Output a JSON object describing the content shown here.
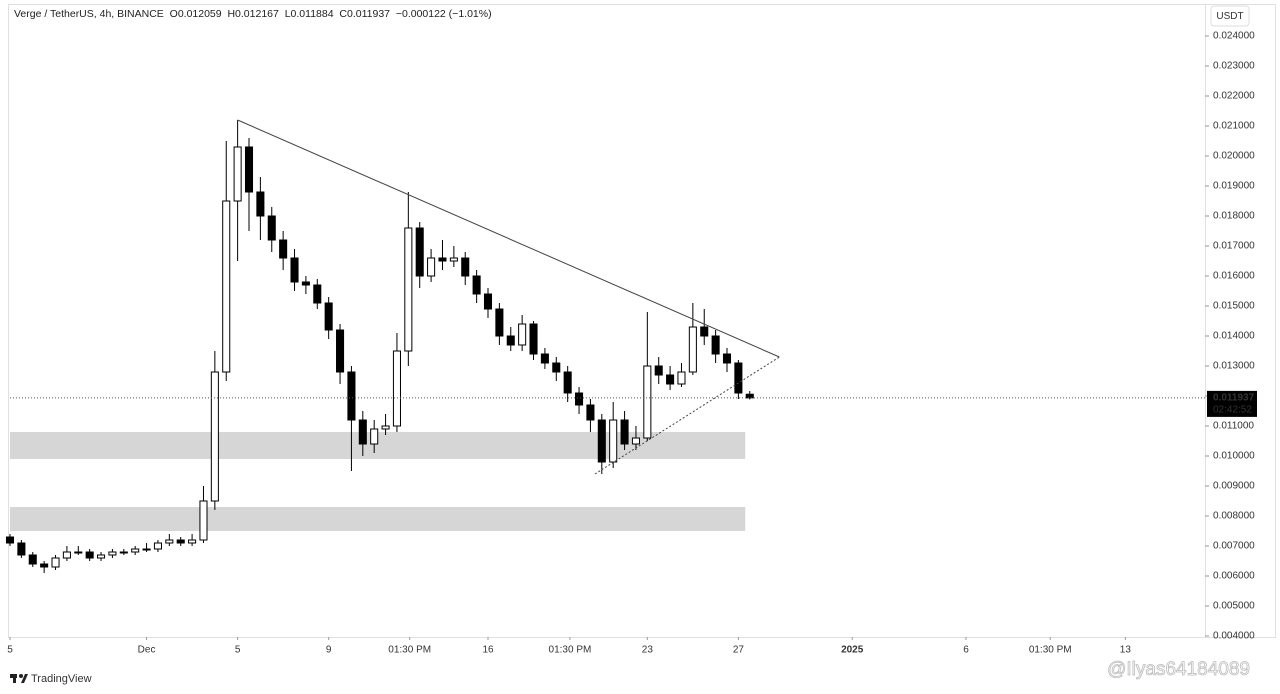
{
  "chart_data": {
    "type": "candlestick",
    "title": "Verge / TetherUS, 4h, BINANCE",
    "ohlc_labels": [
      "O",
      "H",
      "L",
      "C"
    ],
    "change_label": "−0.000122 (−1.01%)",
    "currency": "USDT",
    "countdown": "02:42:52",
    "up_color": "#ffffff",
    "down_color": "#000000",
    "x": [
      -5,
      -4.5,
      -4,
      -3.5,
      -3,
      -2.5,
      -2,
      -1.5,
      -1,
      -0.5,
      0,
      0.5,
      1,
      1.5,
      2,
      2.5,
      3,
      3.5,
      4,
      4.5,
      5,
      5.5,
      6,
      6.5,
      7,
      7.5,
      8,
      8.5,
      9,
      9.5,
      10,
      10.5,
      11,
      11.5,
      12,
      12.5,
      13,
      13.5,
      14,
      14.5,
      15,
      15.5,
      16,
      16.5,
      17,
      17.5,
      18,
      18.5,
      19,
      19.5,
      20,
      20.5,
      21,
      21.5,
      22,
      22.5,
      23,
      23.5,
      24,
      24.5,
      25,
      25.5,
      26,
      26.5,
      27,
      27.5
    ],
    "open": [
      0.0073,
      0.0071,
      0.0067,
      0.0064,
      0.0063,
      0.0066,
      0.0068,
      0.0068,
      0.0066,
      0.0067,
      0.0068,
      0.0068,
      0.0069,
      0.0069,
      0.0071,
      0.0072,
      0.0071,
      0.0072,
      0.0085,
      0.0128,
      0.0185,
      0.0203,
      0.0188,
      0.018,
      0.0172,
      0.0166,
      0.0158,
      0.0157,
      0.0151,
      0.0142,
      0.0128,
      0.0112,
      0.0104,
      0.0109,
      0.011,
      0.0135,
      0.0176,
      0.016,
      0.0166,
      0.0165,
      0.0166,
      0.016,
      0.0154,
      0.0149,
      0.014,
      0.0137,
      0.0144,
      0.0134,
      0.0131,
      0.0128,
      0.0121,
      0.0117,
      0.0112,
      0.0098,
      0.0112,
      0.0104,
      0.0106,
      0.013,
      0.0127,
      0.0124,
      0.0128,
      0.0143,
      0.014,
      0.0134,
      0.0131,
      0.012059
    ],
    "high": [
      0.0074,
      0.0072,
      0.0068,
      0.0065,
      0.0067,
      0.007,
      0.007,
      0.0069,
      0.0068,
      0.0069,
      0.0069,
      0.007,
      0.0071,
      0.0072,
      0.0074,
      0.0073,
      0.0074,
      0.009,
      0.0135,
      0.0205,
      0.0212,
      0.0206,
      0.0193,
      0.0183,
      0.0175,
      0.0169,
      0.016,
      0.0159,
      0.0153,
      0.0144,
      0.013,
      0.0115,
      0.0112,
      0.0114,
      0.0141,
      0.0188,
      0.0178,
      0.0169,
      0.0172,
      0.017,
      0.0168,
      0.0162,
      0.0156,
      0.0151,
      0.0143,
      0.0147,
      0.0145,
      0.0136,
      0.0133,
      0.013,
      0.0123,
      0.0119,
      0.0114,
      0.0118,
      0.0115,
      0.011,
      0.0148,
      0.0133,
      0.013,
      0.0131,
      0.0151,
      0.0149,
      0.0142,
      0.0136,
      0.0132,
      0.012167
    ],
    "low": [
      0.007,
      0.0066,
      0.0063,
      0.0061,
      0.0062,
      0.0065,
      0.0067,
      0.0065,
      0.0065,
      0.0066,
      0.0067,
      0.0067,
      0.0068,
      0.0068,
      0.007,
      0.007,
      0.007,
      0.0071,
      0.0082,
      0.0125,
      0.0165,
      0.0175,
      0.0172,
      0.0168,
      0.0162,
      0.0155,
      0.0154,
      0.0149,
      0.0139,
      0.0124,
      0.0095,
      0.01,
      0.0101,
      0.0107,
      0.0108,
      0.013,
      0.0156,
      0.0158,
      0.0162,
      0.0163,
      0.0157,
      0.0151,
      0.0146,
      0.0137,
      0.0135,
      0.0135,
      0.0132,
      0.0129,
      0.0125,
      0.0118,
      0.0114,
      0.0108,
      0.0094,
      0.0096,
      0.0102,
      0.0102,
      0.0105,
      0.0124,
      0.0122,
      0.0123,
      0.0127,
      0.0137,
      0.0131,
      0.0128,
      0.0119,
      0.011884
    ],
    "close": [
      0.0071,
      0.0067,
      0.0064,
      0.0063,
      0.0066,
      0.0068,
      0.0068,
      0.0066,
      0.0067,
      0.0068,
      0.0068,
      0.0069,
      0.0069,
      0.0071,
      0.0072,
      0.0071,
      0.0072,
      0.0085,
      0.0128,
      0.0185,
      0.0203,
      0.0188,
      0.018,
      0.0172,
      0.0166,
      0.0158,
      0.0157,
      0.0151,
      0.0142,
      0.0128,
      0.0112,
      0.0104,
      0.0109,
      0.011,
      0.0135,
      0.0176,
      0.016,
      0.0166,
      0.0165,
      0.0166,
      0.016,
      0.0154,
      0.0149,
      0.014,
      0.0137,
      0.0144,
      0.0134,
      0.0131,
      0.0128,
      0.0121,
      0.0117,
      0.0112,
      0.0098,
      0.0112,
      0.0104,
      0.0106,
      0.013,
      0.0127,
      0.0124,
      0.0128,
      0.0143,
      0.014,
      0.0134,
      0.0131,
      0.0121,
      0.011937
    ],
    "trendlines": [
      {
        "style": "solid",
        "x": [
          5,
          28.8
        ],
        "y": [
          0.0212,
          0.0133
        ]
      },
      {
        "style": "dotted",
        "x": [
          20.7,
          28.8
        ],
        "y": [
          0.0094,
          0.0133
        ]
      }
    ],
    "zones": [
      {
        "x": [
          -5,
          27.3
        ],
        "y": [
          0.0099,
          0.0108
        ],
        "color": "#d6d6d6"
      },
      {
        "x": [
          -5,
          27.3
        ],
        "y": [
          0.0075,
          0.0083
        ],
        "color": "#d6d6d6"
      }
    ],
    "xlim": [
      -5,
      47.5
    ],
    "ylim": [
      0.004,
      0.025
    ],
    "xticks": [
      {
        "value": -5,
        "label": "5"
      },
      {
        "value": 1,
        "label": "Dec"
      },
      5,
      9,
      {
        "value": 12.56,
        "label": "01:30 PM"
      },
      16,
      {
        "value": 19.6,
        "label": "01:30 PM"
      },
      23,
      27,
      {
        "value": 32,
        "label": "2025"
      },
      {
        "value": 37,
        "label": "6"
      },
      {
        "value": 40.7,
        "label": "01:30 PM"
      },
      {
        "value": 44,
        "label": "13"
      }
    ],
    "yticks": [
      {
        "value": 0.004,
        "label": "0.004000"
      },
      {
        "value": 0.005,
        "label": "0.005000"
      },
      {
        "value": 0.006,
        "label": "0.006000"
      },
      {
        "value": 0.007,
        "label": "0.007000"
      },
      {
        "value": 0.008,
        "label": "0.008000"
      },
      {
        "value": 0.009,
        "label": "0.009000"
      },
      {
        "value": 0.01,
        "label": "0.010000"
      },
      {
        "value": 0.011,
        "label": "0.011000"
      },
      {
        "value": 0.012,
        "label": "0.012000"
      },
      {
        "value": 0.013,
        "label": "0.013000"
      },
      {
        "value": 0.014,
        "label": "0.014000"
      },
      {
        "value": 0.015,
        "label": "0.015000"
      },
      {
        "value": 0.016,
        "label": "0.016000"
      },
      {
        "value": 0.017,
        "label": "0.017000"
      },
      {
        "value": 0.018,
        "label": "0.018000"
      },
      {
        "value": 0.019,
        "label": "0.019000"
      },
      {
        "value": 0.02,
        "label": "0.020000"
      },
      {
        "value": 0.021,
        "label": "0.021000"
      },
      {
        "value": 0.022,
        "label": "0.022000"
      },
      {
        "value": 0.023,
        "label": "0.023000"
      },
      {
        "value": 0.024,
        "label": "0.024000"
      }
    ],
    "brand": "TradingView",
    "watermark": "@Ilyas64184089"
  }
}
